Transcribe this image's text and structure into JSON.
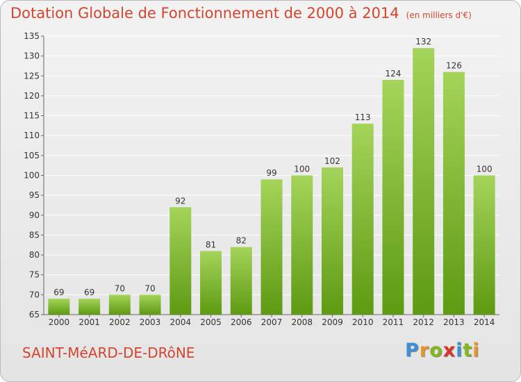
{
  "title": "Dotation Globale de Fonctionnement de 2000 à 2014",
  "subtitle": "(en milliers d'€)",
  "commune": "SAINT-MéARD-DE-DRôNE",
  "logo": {
    "letters": [
      "P",
      "r",
      "o",
      "x",
      "i",
      "t",
      "i"
    ],
    "colors": [
      "#3f8fd2",
      "#e9952a",
      "#84b81f",
      "#d8342a",
      "#3f8fd2",
      "#84b81f",
      "#e9952a"
    ]
  },
  "colors": {
    "bar_top": "#a4d45a",
    "bar_bottom": "#5e9a12",
    "axis": "#666666",
    "grid": "#ffffff",
    "title": "#d2452f"
  },
  "chart_data": {
    "type": "bar",
    "categories": [
      "2000",
      "2001",
      "2002",
      "2003",
      "2004",
      "2005",
      "2006",
      "2007",
      "2008",
      "2009",
      "2010",
      "2011",
      "2012",
      "2013",
      "2014"
    ],
    "values": [
      69,
      69,
      70,
      70,
      92,
      81,
      82,
      99,
      100,
      102,
      113,
      124,
      132,
      126,
      100
    ],
    "ylim": [
      65,
      135
    ],
    "yticks": [
      65,
      70,
      75,
      80,
      85,
      90,
      95,
      100,
      105,
      110,
      115,
      120,
      125,
      130,
      135
    ],
    "grid": true
  }
}
